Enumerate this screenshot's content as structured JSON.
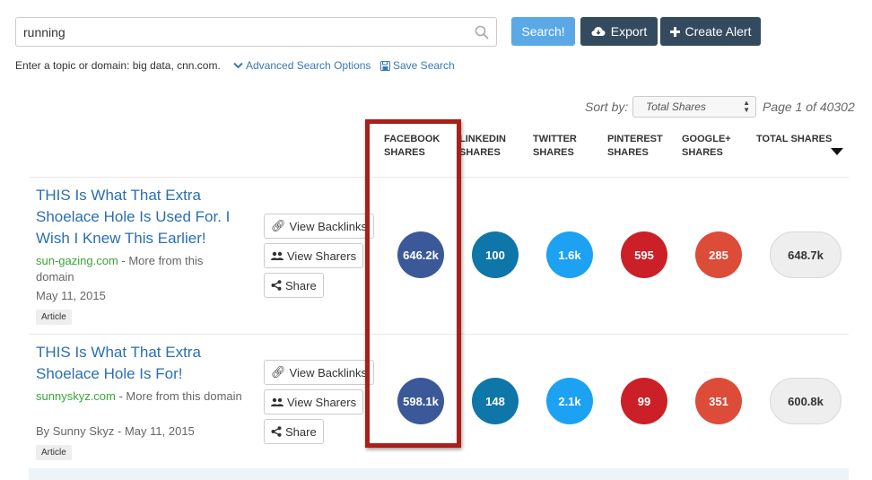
{
  "search": {
    "value": "running",
    "hint": "Enter a topic or domain: big data, cnn.com.",
    "advanced_label": "Advanced Search Options",
    "save_label": "Save Search"
  },
  "toolbar": {
    "search_label": "Search!",
    "export_label": "Export",
    "alert_label": "Create Alert"
  },
  "sort": {
    "label": "Sort by:",
    "selected": "Total Shares",
    "page_info": "Page 1 of 40302"
  },
  "columns": [
    {
      "line1": "FACEBOOK",
      "line2": "SHARES"
    },
    {
      "line1": "LINKEDIN",
      "line2": "SHARES"
    },
    {
      "line1": "TWITTER",
      "line2": "SHARES"
    },
    {
      "line1": "PINTEREST",
      "line2": "SHARES"
    },
    {
      "line1": "GOOGLE+",
      "line2": "SHARES"
    },
    {
      "line1": "TOTAL SHARES",
      "line2": ""
    }
  ],
  "actions": {
    "backlinks": "View Backlinks",
    "sharers": "View Sharers",
    "share": "Share"
  },
  "results": [
    {
      "title_lines": [
        "THIS Is What That Extra",
        "Shoelace Hole Is Used For. I",
        "Wish I Knew This Earlier!"
      ],
      "domain": "sun-gazing.com",
      "more_from": " - More from this domain",
      "byline": "May 11, 2015",
      "tag": "Article",
      "facebook": "646.2k",
      "linkedin": "100",
      "twitter": "1.6k",
      "pinterest": "595",
      "googleplus": "285",
      "total": "648.7k"
    },
    {
      "title_lines": [
        "THIS Is What That Extra",
        "Shoelace Hole Is For!"
      ],
      "domain": "sunnyskyz.com",
      "more_from": " - More from this domain",
      "byline": "By Sunny Skyz - May 11, 2015",
      "tag": "Article",
      "facebook": "598.1k",
      "linkedin": "148",
      "twitter": "2.1k",
      "pinterest": "99",
      "googleplus": "351",
      "total": "600.8k"
    }
  ],
  "colors": {
    "facebook": "#3b5998",
    "linkedin": "#0e76a8",
    "twitter": "#1da1f2",
    "pinterest": "#cb2027",
    "googleplus": "#dd4b39",
    "highlight": "#a8201a"
  }
}
